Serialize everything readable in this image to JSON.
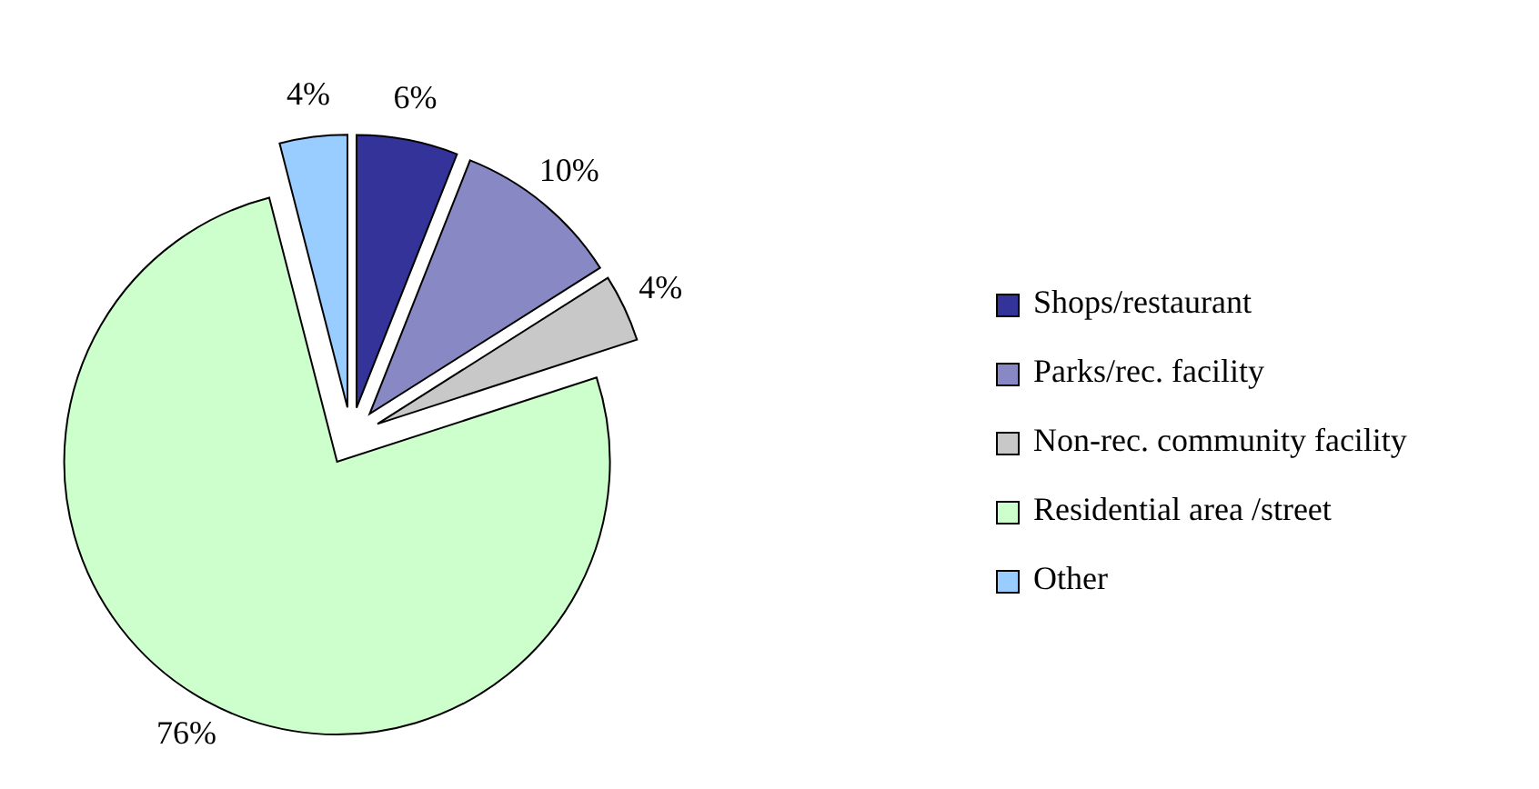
{
  "chart_data": {
    "type": "pie",
    "categories": [
      "Shops/restaurant",
      "Parks/rec. facility",
      "Non-rec. community facility",
      "Residential area /street",
      "Other"
    ],
    "values": [
      6,
      10,
      4,
      76,
      4
    ],
    "colors": [
      "#333399",
      "#8888c4",
      "#c8c8c8",
      "#ccffcc",
      "#99ccff"
    ],
    "value_labels": [
      "6%",
      "10%",
      "4%",
      "76%",
      "4%"
    ],
    "legend": "right"
  }
}
